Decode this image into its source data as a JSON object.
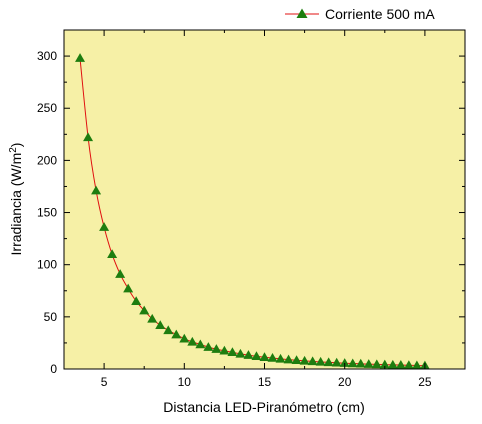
{
  "chart_data": {
    "type": "scatter",
    "xlabel": "Distancia LED-Piranómetro (cm)",
    "ylabel": "Irradiancia (W/m²)",
    "ylabel_main": "Irradiancia (W/m",
    "ylabel_sup": "2",
    "ylabel_tail": ")",
    "xlim": [
      2.5,
      27.5
    ],
    "ylim": [
      0,
      325
    ],
    "xticks": [
      5,
      10,
      15,
      20,
      25
    ],
    "yticks": [
      0,
      50,
      100,
      150,
      200,
      250,
      300
    ],
    "grid": false,
    "legend_position": "top-right",
    "background_color": "#f6f0a6",
    "series": [
      {
        "name": "Corriente 500 mA",
        "marker": "triangle",
        "marker_color": "#1e7d0f",
        "line_color": "#e01010",
        "x": [
          3.5,
          4.0,
          4.5,
          5.0,
          5.5,
          6.0,
          6.5,
          7.0,
          7.5,
          8.0,
          8.5,
          9.0,
          9.5,
          10.0,
          10.5,
          11.0,
          11.5,
          12.0,
          12.5,
          13.0,
          13.5,
          14.0,
          14.5,
          15.0,
          15.5,
          16.0,
          16.5,
          17.0,
          17.5,
          18.0,
          18.5,
          19.0,
          19.5,
          20.0,
          20.5,
          21.0,
          21.5,
          22.0,
          22.5,
          23.0,
          23.5,
          24.0,
          24.5,
          25.0
        ],
        "y": [
          298,
          222,
          171,
          136,
          110,
          91,
          77,
          65,
          56,
          48,
          42,
          37,
          33,
          29,
          26,
          23.5,
          21,
          19,
          17.5,
          16,
          14.5,
          13.3,
          12.2,
          11.3,
          10.5,
          9.7,
          9.0,
          8.4,
          7.8,
          7.3,
          6.8,
          6.4,
          6.0,
          5.6,
          5.3,
          5.0,
          4.7,
          4.4,
          4.2,
          4.0,
          3.8,
          3.6,
          3.4,
          3.2
        ]
      }
    ]
  }
}
